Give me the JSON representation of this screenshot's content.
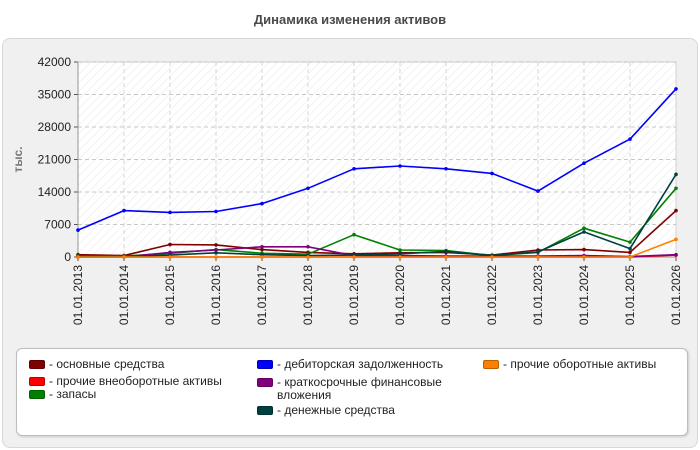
{
  "chart_data": {
    "type": "line",
    "title": "Динамика изменения активов",
    "ylabel": "тыс.",
    "xlabel": "",
    "ylim": [
      0,
      42000
    ],
    "yticks": [
      0,
      7000,
      14000,
      21000,
      28000,
      35000,
      42000
    ],
    "grid": true,
    "legend_position": "bottom",
    "categories": [
      "01.01.2013",
      "01.01.2014",
      "01.01.2015",
      "01.01.2016",
      "01.01.2017",
      "01.01.2018",
      "01.01.2019",
      "01.01.2020",
      "01.01.2021",
      "01.01.2022",
      "01.01.2023",
      "01.01.2024",
      "01.01.2025",
      "01.01.2026"
    ],
    "series": [
      {
        "name": "- основные средства",
        "color": "#800000",
        "values": [
          500,
          300,
          2700,
          2600,
          1600,
          1000,
          700,
          900,
          1000,
          400,
          1500,
          1600,
          1000,
          10000
        ]
      },
      {
        "name": "- прочие внеоборотные активы",
        "color": "#ff0000",
        "values": [
          0,
          0,
          0,
          0,
          0,
          0,
          0,
          0,
          0,
          0,
          0,
          0,
          0,
          400
        ]
      },
      {
        "name": "- запасы",
        "color": "#008000",
        "values": [
          200,
          200,
          800,
          1600,
          800,
          600,
          4800,
          1500,
          1400,
          300,
          1000,
          6200,
          3200,
          14800
        ]
      },
      {
        "name": "- дебиторская задолженность",
        "color": "#0000ff",
        "values": [
          5800,
          10000,
          9600,
          9800,
          11500,
          14800,
          19000,
          19600,
          19000,
          18000,
          14200,
          20200,
          25400,
          36200
        ]
      },
      {
        "name": "- краткосрочные финансовые вложения",
        "color": "#800080",
        "values": [
          0,
          0,
          1000,
          1500,
          2200,
          2200,
          300,
          300,
          200,
          200,
          200,
          300,
          100,
          500
        ]
      },
      {
        "name": "- денежные средства",
        "color": "#004040",
        "values": [
          100,
          100,
          400,
          900,
          500,
          300,
          400,
          700,
          1200,
          300,
          1100,
          5400,
          1800,
          17800
        ]
      },
      {
        "name": "- прочие оборотные активы",
        "color": "#ff8000",
        "values": [
          0,
          0,
          0,
          0,
          0,
          0,
          0,
          0,
          0,
          0,
          0,
          0,
          0,
          3800
        ]
      }
    ]
  }
}
